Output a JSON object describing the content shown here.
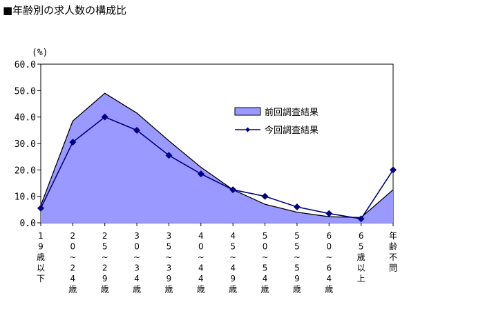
{
  "page": {
    "title": "■年齢別の求人数の構成比"
  },
  "chart_data": {
    "type": "line",
    "title": "■年齢別の求人数の構成比",
    "ylabel": "(%)",
    "xlabel": "",
    "ylim": [
      0,
      60
    ],
    "yticks": [
      "0.0",
      "10.0",
      "20.0",
      "30.0",
      "40.0",
      "50.0",
      "60.0"
    ],
    "categories": [
      "19歳以下",
      "20~24歳",
      "25~29歳",
      "30~34歳",
      "35~39歳",
      "40~44歳",
      "45~49歳",
      "50~54歳",
      "55~59歳",
      "60~64歳",
      "65歳以上",
      "年齢不問"
    ],
    "series": [
      {
        "name": "前回調査結果",
        "type": "area",
        "color": "#9999ff",
        "values": [
          6.5,
          38.5,
          49.0,
          41.5,
          31.0,
          21.0,
          12.5,
          7.0,
          4.0,
          2.3,
          2.0,
          12.5
        ]
      },
      {
        "name": "今回調査結果",
        "type": "line",
        "color": "#000080",
        "values": [
          5.5,
          30.5,
          40.0,
          35.0,
          25.5,
          18.5,
          12.5,
          10.0,
          6.0,
          3.5,
          1.5,
          20.0
        ]
      }
    ],
    "grid": false,
    "legend": "top-right"
  }
}
